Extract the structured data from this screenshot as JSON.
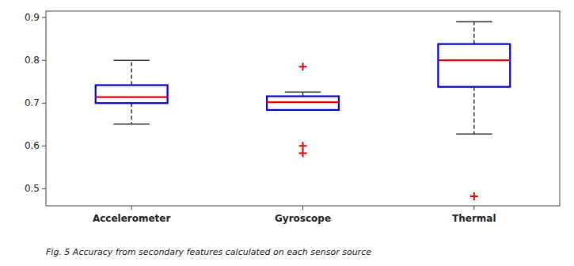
{
  "chart_data": {
    "type": "box",
    "categories": [
      "Accelerometer",
      "Gyroscope",
      "Thermal"
    ],
    "q1": [
      0.7,
      0.684,
      0.738
    ],
    "median": [
      0.714,
      0.702,
      0.8
    ],
    "q3": [
      0.742,
      0.716,
      0.838
    ],
    "whisker_low": [
      0.651,
      0.684,
      0.628
    ],
    "whisker_high": [
      0.8,
      0.726,
      0.89
    ],
    "outliers": [
      [],
      [
        0.785,
        0.6,
        0.583
      ],
      [
        0.482
      ]
    ],
    "ylim": [
      0.46,
      0.915
    ],
    "yticks": [
      0.5,
      0.6,
      0.7,
      0.8,
      0.9
    ],
    "color": "#0000CC",
    "grid": false,
    "caption": "Fig. 5 Accuracy from secondary features calculated on each sensor source"
  }
}
